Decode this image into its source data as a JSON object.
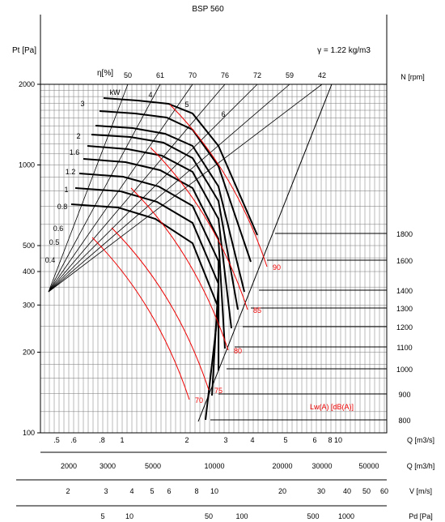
{
  "chart_data": {
    "type": "line",
    "title": "BSP 560",
    "density_label": "γ = 1.22 kg/m3",
    "y_axis": {
      "label": "Pt [Pa]",
      "scale": "log",
      "ylim": [
        100,
        2000
      ],
      "ticks": [
        100,
        200,
        300,
        400,
        500,
        1000,
        2000
      ],
      "tick_labels": [
        "100",
        "200",
        "300",
        "400",
        "500",
        "1000",
        "2000"
      ]
    },
    "efficiency": {
      "label": "η[%]",
      "values": [
        "50",
        "61",
        "70",
        "76",
        "72",
        "59",
        "42"
      ]
    },
    "rpm": {
      "label": "N [rpm]",
      "values": [
        1800,
        1600,
        1400,
        1300,
        1200,
        1100,
        1000,
        900,
        800
      ],
      "labels": [
        "1800",
        "1600",
        "1400",
        "1300",
        "1200",
        "1100",
        "1000",
        "900",
        "800"
      ]
    },
    "power": {
      "unit_label": "kW",
      "labels": [
        "3",
        "2",
        "1.6",
        "1.2",
        "1",
        "0.8",
        "0.6",
        "0.5",
        "0.4"
      ],
      "values": [
        3,
        2,
        1.6,
        1.2,
        1,
        0.8,
        0.6,
        0.5,
        0.4
      ],
      "top_labels": [
        "4",
        "5",
        "6"
      ]
    },
    "noise": {
      "legend": "Lw(A) [dB(A)]",
      "values": [
        "90",
        "85",
        "80",
        "75",
        "70"
      ]
    },
    "x_axes": [
      {
        "label": "Q [m3/s]",
        "scale": "log",
        "ticks": [
          ".5",
          ".6",
          ".8",
          "1",
          "2",
          "3",
          "4",
          "5",
          "6",
          "8",
          "10"
        ]
      },
      {
        "label": "Q [m3/h]",
        "scale": "log",
        "ticks": [
          "2000",
          "3000",
          "5000",
          "10000",
          "20000",
          "30000",
          "50000"
        ]
      },
      {
        "label": "V [m/s]",
        "scale": "log",
        "ticks": [
          "2",
          "3",
          "4",
          "5",
          "6",
          "8",
          "10",
          "20",
          "30",
          "40",
          "50",
          "60"
        ]
      },
      {
        "label": "Pd [Pa]",
        "scale": "log",
        "ticks": [
          "5",
          "10",
          "50",
          "100",
          "500",
          "1000"
        ]
      }
    ],
    "series": [
      {
        "rpm": 1800,
        "x": [
          0.9,
          1.5,
          2.0,
          2.6,
          3.2,
          4.0
        ],
        "y": [
          1800,
          1790,
          1720,
          1560,
          1270,
          590
        ]
      },
      {
        "rpm": 1600,
        "x": [
          0.8,
          1.3,
          1.8,
          2.3,
          2.8,
          3.6
        ],
        "y": [
          1430,
          1420,
          1360,
          1230,
          1000,
          460
        ]
      },
      {
        "rpm": 1400,
        "x": [
          0.7,
          1.1,
          1.6,
          2.0,
          2.5,
          3.2
        ],
        "y": [
          1090,
          1085,
          1040,
          940,
          770,
          355
        ]
      },
      {
        "rpm": 1300,
        "x": [
          0.65,
          1.0,
          1.5,
          1.9,
          2.3,
          3.0
        ],
        "y": [
          940,
          935,
          900,
          810,
          660,
          305
        ]
      },
      {
        "rpm": 1200,
        "x": [
          0.6,
          0.95,
          1.35,
          1.7,
          2.1,
          2.7
        ],
        "y": [
          800,
          795,
          765,
          690,
          565,
          260
        ]
      },
      {
        "rpm": 1100,
        "x": [
          0.55,
          0.88,
          1.25,
          1.6,
          2.0,
          2.5
        ],
        "y": [
          675,
          670,
          645,
          580,
          475,
          218
        ]
      },
      {
        "rpm": 1000,
        "x": [
          0.5,
          0.8,
          1.1,
          1.45,
          1.8,
          2.3
        ],
        "y": [
          555,
          552,
          530,
          480,
          390,
          180
        ]
      },
      {
        "rpm": 900,
        "x": [
          0.45,
          0.72,
          1.0,
          1.3,
          1.6,
          2.1
        ],
        "y": [
          450,
          447,
          430,
          390,
          315,
          145
        ]
      },
      {
        "rpm": 800,
        "x": [
          0.4,
          0.64,
          0.9,
          1.15,
          1.45,
          1.85
        ],
        "y": [
          355,
          353,
          340,
          305,
          250,
          115
        ]
      }
    ]
  }
}
